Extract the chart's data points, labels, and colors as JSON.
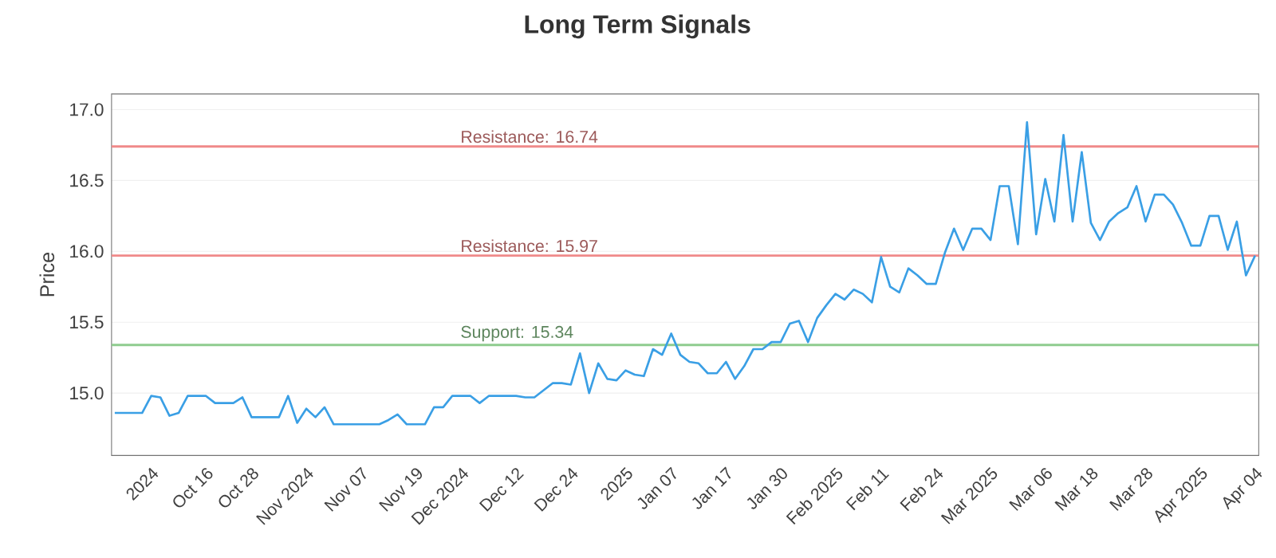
{
  "chart_data": {
    "type": "line",
    "title": "Long Term Signals",
    "ylabel": "Price",
    "categories": [
      null,
      null,
      null,
      null,
      "2024",
      null,
      null,
      null,
      null,
      null,
      "Oct 16",
      null,
      null,
      null,
      null,
      "Oct 28",
      null,
      null,
      null,
      null,
      null,
      "Nov 2024",
      null,
      null,
      null,
      null,
      null,
      "Nov 07",
      null,
      null,
      null,
      null,
      null,
      "Nov 19",
      null,
      null,
      null,
      null,
      "Dec 2024",
      null,
      null,
      null,
      null,
      null,
      "Dec 12",
      null,
      null,
      null,
      null,
      null,
      "Dec 24",
      null,
      null,
      null,
      null,
      null,
      "2025",
      null,
      null,
      null,
      null,
      "Jan 07",
      null,
      null,
      null,
      null,
      null,
      "Jan 17",
      null,
      null,
      null,
      null,
      null,
      "Jan 30",
      null,
      null,
      null,
      null,
      null,
      "Feb 2025",
      null,
      null,
      null,
      null,
      "Feb 11",
      null,
      null,
      null,
      null,
      null,
      "Feb 24",
      null,
      null,
      null,
      null,
      null,
      "Mar 2025",
      null,
      null,
      null,
      null,
      null,
      "Mar 06",
      null,
      null,
      null,
      null,
      "Mar 18",
      null,
      null,
      null,
      null,
      null,
      "Mar 28",
      null,
      null,
      null,
      null,
      null,
      "Apr 2025",
      null,
      null,
      null,
      null,
      null,
      "Apr 04"
    ],
    "series": [
      {
        "color": "#3a9fe5",
        "values": [
          14.86,
          14.86,
          14.86,
          14.86,
          14.98,
          14.97,
          14.84,
          14.86,
          14.98,
          14.98,
          14.98,
          14.93,
          14.93,
          14.93,
          14.97,
          14.83,
          14.83,
          14.83,
          14.83,
          14.98,
          14.79,
          14.89,
          14.83,
          14.9,
          14.78,
          14.78,
          14.78,
          14.78,
          14.78,
          14.78,
          14.81,
          14.85,
          14.78,
          14.78,
          14.78,
          14.9,
          14.9,
          14.98,
          14.98,
          14.98,
          14.93,
          14.98,
          14.98,
          14.98,
          14.98,
          14.97,
          14.97,
          15.02,
          15.07,
          15.07,
          15.06,
          15.28,
          15.0,
          15.21,
          15.1,
          15.09,
          15.16,
          15.13,
          15.12,
          15.31,
          15.27,
          15.42,
          15.27,
          15.22,
          15.21,
          15.14,
          15.14,
          15.22,
          15.1,
          15.19,
          15.31,
          15.31,
          15.36,
          15.36,
          15.49,
          15.51,
          15.36,
          15.53,
          15.62,
          15.7,
          15.66,
          15.73,
          15.7,
          15.64,
          15.96,
          15.75,
          15.71,
          15.88,
          15.83,
          15.77,
          15.77,
          15.99,
          16.16,
          16.01,
          16.16,
          16.16,
          16.08,
          16.46,
          16.46,
          16.05,
          16.91,
          16.12,
          16.51,
          16.21,
          16.82,
          16.21,
          16.7,
          16.2,
          16.08,
          16.21,
          16.27,
          16.31,
          16.46,
          16.21,
          16.4,
          16.4,
          16.33,
          16.2,
          16.04,
          16.04,
          16.25,
          16.25,
          16.01,
          16.21,
          15.83,
          15.97
        ]
      }
    ],
    "ylim": [
      14.56,
      17.11
    ],
    "yticks": [
      {
        "value": 15,
        "label": "15.0"
      },
      {
        "value": 15.5,
        "label": "15.5"
      },
      {
        "value": 16,
        "label": "16.0"
      },
      {
        "value": 16.5,
        "label": "16.5"
      },
      {
        "value": 17,
        "label": "17.0"
      }
    ],
    "grid": "y",
    "ref_lines": [
      {
        "axis": "y",
        "value": 16.74,
        "label": "Resistance: 16.74",
        "color": "#f08a8a"
      },
      {
        "axis": "y",
        "value": 15.97,
        "label": "Resistance: 15.97",
        "color": "#f08a8a"
      },
      {
        "axis": "y",
        "value": 15.34,
        "label": "Support: 15.34",
        "color": "#8fcc8f"
      }
    ]
  }
}
